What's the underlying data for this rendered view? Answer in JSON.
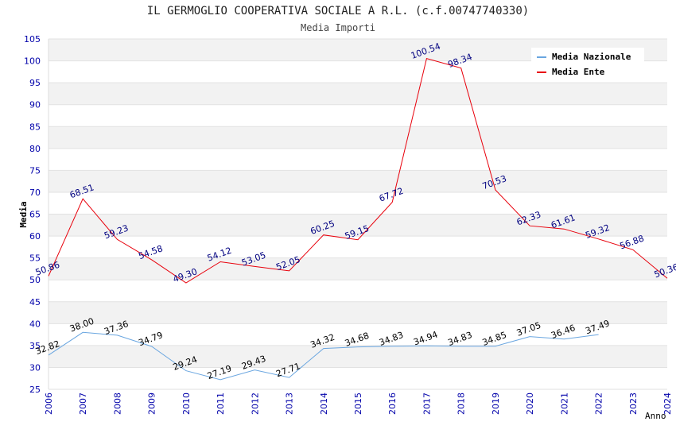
{
  "chart_data": {
    "type": "line",
    "title": "IL GERMOGLIO COOPERATIVA SOCIALE A R.L. (c.f.00747740330)",
    "subtitle": "Media Importi",
    "xlabel": "Anno",
    "ylabel": "Media",
    "ylim": [
      25,
      105
    ],
    "ytick_step": 5,
    "x": [
      2006,
      2007,
      2008,
      2009,
      2010,
      2011,
      2012,
      2013,
      2014,
      2015,
      2016,
      2017,
      2018,
      2019,
      2020,
      2021,
      2022,
      2023,
      2024
    ],
    "grid": "horizontal alternating bands",
    "legend_position": "top-right",
    "series": [
      {
        "name": "Media Nazionale",
        "color": "#6aa6e0",
        "values": [
          32.82,
          38.0,
          37.36,
          34.79,
          29.24,
          27.19,
          29.43,
          27.71,
          34.32,
          34.68,
          34.83,
          34.94,
          34.83,
          34.85,
          37.05,
          36.46,
          37.49,
          null,
          null
        ],
        "labels": [
          "32.82",
          "38.00",
          "37.36",
          "34.79",
          "29.24",
          "27.19",
          "29.43",
          "27.71",
          "34.32",
          "34.68",
          "34.83",
          "34.94",
          "34.83",
          "34.85",
          "37.05",
          "36.46",
          "37.49",
          null,
          null
        ]
      },
      {
        "name": "Media Ente",
        "color": "#e8000b",
        "values": [
          50.86,
          68.51,
          59.23,
          54.58,
          49.3,
          54.12,
          53.05,
          52.05,
          60.25,
          59.15,
          67.72,
          100.54,
          98.34,
          70.53,
          62.33,
          61.61,
          59.32,
          56.88,
          50.36
        ],
        "labels": [
          "50.86",
          "68.51",
          "59.23",
          "54.58",
          "49.30",
          "54.12",
          "53.05",
          "52.05",
          "60.25",
          "59.15",
          "67.72",
          "100.54",
          "98.34",
          "70.53",
          "62.33",
          "61.61",
          "59.32",
          "56.88",
          "50.36"
        ]
      }
    ]
  }
}
